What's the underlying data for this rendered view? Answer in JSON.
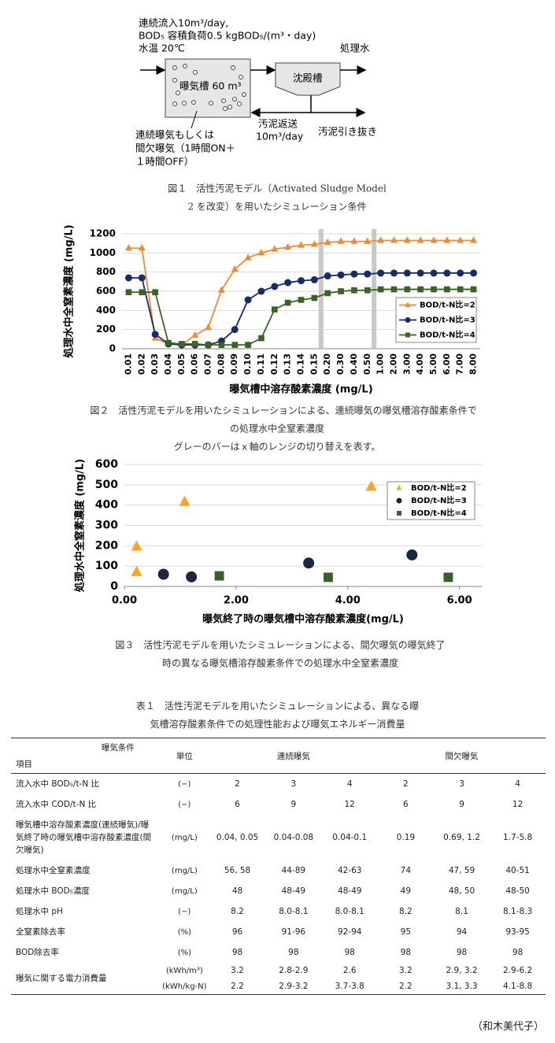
{
  "diagram": {
    "inflow_1": "連続流入10m³/day,",
    "inflow_2": "BOD₅ 容積負荷0.5 kgBOD₅/(m³・day)",
    "inflow_3": "水温 20℃",
    "effluent": "処理水",
    "aeration_tank": "曝気槽 60 m³",
    "settling_tank": "沈殿槽",
    "aeration_1": "連続曝気もしくは",
    "aeration_2": "間欠曝気（1時間ON＋",
    "aeration_3": "１時間OFF）",
    "return_1": "汚泥返送",
    "return_2": "10m³/day",
    "withdrawal": "汚泥引き抜き"
  },
  "captions": {
    "fig1": [
      "図１　活性汚泥モデル（Activated Sludge Model",
      "2 を改変）を用いたシミュレーション条件"
    ],
    "fig2": [
      "図２　活性汚泥モデルを用いたシミュレーションによる、連続曝気の曝気槽溶存酸素条件で",
      "の処理水中全窒素濃度",
      "グレーのバーはｘ軸のレンジの切り替えを表す。"
    ],
    "fig3": [
      "図３　活性汚泥モデルを用いたシミュレーションによる、間欠曝気の曝気終了",
      "時の異なる曝気槽溶存酸素条件での処理水中全窒素濃度"
    ],
    "table1": [
      "表１　活性汚泥モデルを用いたシミュレーションによる、異なる曝",
      "気槽溶存酸素条件での処理性能および曝気エネルギー消費量"
    ]
  },
  "chart_data": [
    {
      "type": "line",
      "x_label": "曝気槽中溶存酸素濃度 (mg/L)",
      "y_label": "処理水中全窒素濃度 (mg/L)",
      "categories": [
        "0.01",
        "0.02",
        "0.03",
        "0.04",
        "0.05",
        "0.06",
        "0.07",
        "0.08",
        "0.09",
        "0.10",
        "0.11",
        "0.12",
        "0.13",
        "0.14",
        "0.15",
        "0.20",
        "0.30",
        "0.40",
        "0.50",
        "1.00",
        "2.00",
        "3.00",
        "4.00",
        "5.00",
        "6.00",
        "7.00",
        "8.00"
      ],
      "ylim": [
        0,
        1200
      ],
      "yticks": [
        0,
        200,
        400,
        600,
        800,
        1000,
        1200
      ],
      "grid": true,
      "legend": "lower right",
      "series": [
        {
          "name": "BOD/t-N比=2",
          "color": "#f28a30",
          "marker": "triangle",
          "values": [
            1050,
            1050,
            110,
            50,
            40,
            140,
            220,
            610,
            830,
            950,
            1000,
            1040,
            1060,
            1080,
            1090,
            1110,
            1120,
            1120,
            1120,
            1130,
            1130,
            1130,
            1130,
            1130,
            1130,
            1130,
            1130
          ]
        },
        {
          "name": "BOD/t-N比=3",
          "color": "#152c6b",
          "marker": "circle",
          "values": [
            740,
            740,
            150,
            50,
            40,
            40,
            40,
            80,
            200,
            510,
            600,
            650,
            690,
            710,
            720,
            760,
            770,
            780,
            780,
            790,
            790,
            790,
            790,
            790,
            790,
            790,
            790
          ]
        },
        {
          "name": "BOD/t-N比=4",
          "color": "#3a6424",
          "marker": "square",
          "values": [
            590,
            590,
            590,
            60,
            50,
            50,
            40,
            40,
            40,
            40,
            110,
            410,
            480,
            510,
            530,
            580,
            600,
            610,
            610,
            620,
            620,
            620,
            620,
            620,
            620,
            620,
            620
          ]
        }
      ]
    },
    {
      "type": "scatter",
      "x_label": "曝気終了時の曝気槽中溶存酸素濃度(mg/L)",
      "y_label": "処理水中全窒素濃度 (mg/L)",
      "xlim": [
        0,
        6.4
      ],
      "xticks": [
        {
          "value": 0,
          "label": "0.00"
        },
        {
          "value": 2,
          "label": "2.00"
        },
        {
          "value": 4,
          "label": "4.00"
        },
        {
          "value": 6,
          "label": "6.00"
        }
      ],
      "ylim": [
        0,
        600
      ],
      "yticks": [
        0,
        100,
        200,
        300,
        400,
        500,
        600
      ],
      "grid": true,
      "legend": "upper right",
      "series": [
        {
          "name": "BOD/t-N比=2",
          "color": "#f5a623",
          "marker": "triangle",
          "x": [
            0.22,
            0.22,
            1.08,
            4.42
          ],
          "values": [
            195,
            70,
            415,
            490
          ]
        },
        {
          "name": "BOD/t-N比=3",
          "color": "#1c2640",
          "marker": "circle",
          "x": [
            0.7,
            1.2,
            3.3,
            5.15
          ],
          "values": [
            60,
            47,
            115,
            155
          ]
        },
        {
          "name": "BOD/t-N比=4",
          "color": "#37602a",
          "marker": "square",
          "x": [
            1.7,
            3.65,
            5.8
          ],
          "values": [
            52,
            45,
            45
          ]
        }
      ]
    }
  ],
  "table": {
    "header": {
      "condition": "曝気条件",
      "item": "項目",
      "unit": "単位",
      "continuous": "連続曝気",
      "intermittent": "間欠曝気"
    },
    "rows": [
      {
        "item": "流入水中 BOD₅/t-N 比",
        "sub_rows": [
          {
            "unit": "(−)",
            "values": [
              "2",
              "3",
              "4",
              "2",
              "3",
              "4"
            ]
          }
        ]
      },
      {
        "item": "流入水中 COD/t-N 比",
        "sub_rows": [
          {
            "unit": "(−)",
            "values": [
              "6",
              "9",
              "12",
              "6",
              "9",
              "12"
            ]
          }
        ]
      },
      {
        "item": "曝気槽中溶存酸素濃度(連続曝気)/曝気終了時の曝気槽中溶存酸素濃度(間欠曝気)",
        "sub_rows": [
          {
            "unit": "(mg/L)",
            "values": [
              "0.04, 0.05",
              "0.04-0.08",
              "0.04-0.1",
              "0.19",
              "0.69, 1.2",
              "1.7-5.8"
            ]
          }
        ]
      },
      {
        "item": "処理水中全窒素濃度",
        "sub_rows": [
          {
            "unit": "(mg/L)",
            "values": [
              "56, 58",
              "44-89",
              "42-63",
              "74",
              "47, 59",
              "40-51"
            ]
          }
        ]
      },
      {
        "item": "処理水中 BOD₅濃度",
        "sub_rows": [
          {
            "unit": "(mg/L)",
            "values": [
              "48",
              "48-49",
              "48-49",
              "49",
              "48, 50",
              "48-50"
            ]
          }
        ]
      },
      {
        "item": "処理水中 pH",
        "sub_rows": [
          {
            "unit": "(−)",
            "values": [
              "8.2",
              "8.0-8.1",
              "8.0-8.1",
              "8.2",
              "8.1",
              "8.1-8.3"
            ]
          }
        ]
      },
      {
        "item": "全窒素除去率",
        "sub_rows": [
          {
            "unit": "(%)",
            "values": [
              "96",
              "91-96",
              "92-94",
              "95",
              "94",
              "93-95"
            ]
          }
        ]
      },
      {
        "item": "BOD除去率",
        "sub_rows": [
          {
            "unit": "(%)",
            "values": [
              "98",
              "98",
              "98",
              "98",
              "98",
              "98"
            ]
          }
        ]
      },
      {
        "item": "曝気に関する電力消費量",
        "sub_rows": [
          {
            "unit": "(kWh/m³)",
            "values": [
              "3.2",
              "2.8-2.9",
              "2.6",
              "3.2",
              "2.9, 3.2",
              "2.9-6.2"
            ]
          },
          {
            "unit": "(kWh/kg-N)",
            "values": [
              "2.2",
              "2.9-3.2",
              "3.7-3.8",
              "2.2",
              "3.1, 3.3",
              "4.1-8.8"
            ]
          }
        ]
      }
    ]
  },
  "author": "（和木美代子）"
}
